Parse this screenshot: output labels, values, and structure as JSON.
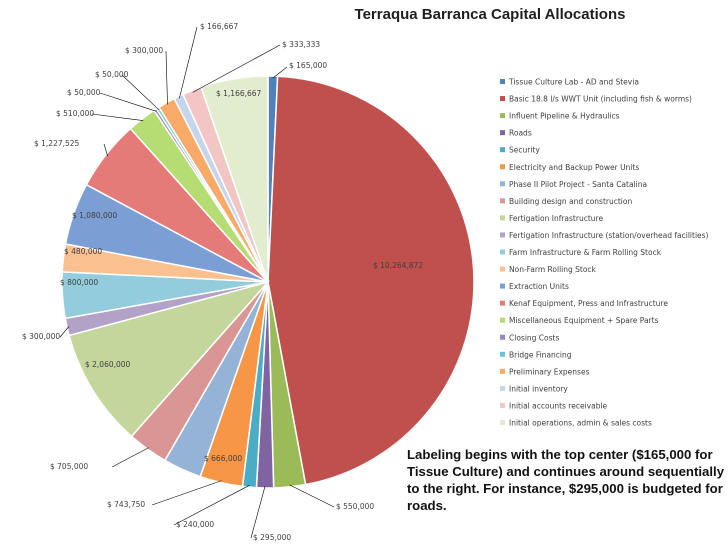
{
  "chart_data": {
    "type": "pie",
    "title": "Terraqua Barranca Capital Allocations",
    "start": "top",
    "direction": "clockwise",
    "legend_position": "right",
    "categories": [
      "Tissue Culture Lab - AD and Stevia",
      "Basic 18.8 l/s WWT Unit (including fish & worms)",
      "Influent Pipeline & Hydraulics",
      "Roads",
      "Security",
      "Electricity and Backup Power Units",
      "Phase II Pilot Project - Santa Catalina",
      "Building design and construction",
      "Fertigation Infrastructure",
      "Fertigation Infrastructure (station/overhead facilities)",
      "Farm Infrastructure & Farm Rolling Stock",
      "Non-Farm Rolling Stock",
      "Extraction Units",
      "Kenaf Equipment, Press and Infrastructure",
      "Miscellaneous Equipment + Spare Parts",
      "Closing Costs",
      "Bridge Financing",
      "Preliminary Expenses",
      "Initial inventory",
      "Initial accounts receivable",
      "Initial operations, admin & sales costs"
    ],
    "values": [
      165000,
      10264872,
      550000,
      295000,
      240000,
      743750,
      666000,
      705000,
      2060000,
      300000,
      800000,
      480000,
      1080000,
      1227525,
      510000,
      50000,
      50000,
      300000,
      166667,
      333333,
      1166667
    ],
    "data_labels": [
      "$ 165,000",
      "$ 10,264,872",
      "$ 550,000",
      "$ 295,000",
      "$ 240,000",
      "$ 743,750",
      "$ 666,000",
      "$ 705,000",
      "$ 2,060,000",
      "$ 300,000",
      "$ 800,000",
      "$ 480,000",
      "$ 1,080,000",
      "$ 1,227,525",
      "$ 510,000",
      "$ 50,000",
      "$ 50,000",
      "$ 300,000",
      "$ 166,667",
      "$ 333,333",
      "$ 1,166,667"
    ],
    "colors": [
      "#4f81bd",
      "#c0504d",
      "#9bbb59",
      "#8064a2",
      "#4bacc6",
      "#f79646",
      "#95b3d7",
      "#da9694",
      "#c3d69b",
      "#b2a2c7",
      "#93cddd",
      "#fac090",
      "#7b9fd4",
      "#e57b78",
      "#b6dd74",
      "#9d87bf",
      "#6dc2d9",
      "#f9a968",
      "#c5d6ec",
      "#f2c6c5",
      "#e2edcf"
    ]
  },
  "annotation": "Labeling begins with the top center ($165,000 for Tissue Culture) and continues around sequentially to the right. For instance, $295,000 is budgeted for roads."
}
